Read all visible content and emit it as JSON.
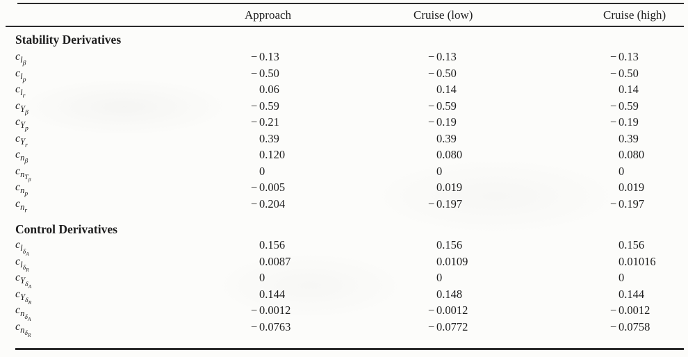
{
  "page": {
    "background_color": "#fcfcfa",
    "text_color": "#1d1d1d",
    "rule_color": "#2b2b2b"
  },
  "table": {
    "column_headers": [
      "Approach",
      "Cruise (low)",
      "Cruise (high)"
    ],
    "sections": [
      {
        "title": "Stability Derivatives",
        "rows": [
          {
            "symbol": [
              "c",
              "l",
              "β"
            ],
            "symbol_text": "c_l_beta",
            "values": [
              "-0.13",
              "-0.13",
              "-0.13"
            ]
          },
          {
            "symbol": [
              "c",
              "l",
              "p"
            ],
            "symbol_text": "c_l_p",
            "values": [
              "-0.50",
              "-0.50",
              "-0.50"
            ]
          },
          {
            "symbol": [
              "c",
              "l",
              "r"
            ],
            "symbol_text": "c_l_r",
            "values": [
              "0.06",
              "0.14",
              "0.14"
            ]
          },
          {
            "symbol": [
              "c",
              "Y",
              "β"
            ],
            "symbol_text": "c_Y_beta",
            "values": [
              "-0.59",
              "-0.59",
              "-0.59"
            ]
          },
          {
            "symbol": [
              "c",
              "Y",
              "p"
            ],
            "symbol_text": "c_Y_p",
            "values": [
              "-0.21",
              "-0.19",
              "-0.19"
            ]
          },
          {
            "symbol": [
              "c",
              "Y",
              "r"
            ],
            "symbol_text": "c_Y_r",
            "values": [
              "0.39",
              "0.39",
              "0.39"
            ]
          },
          {
            "symbol": [
              "c",
              "n",
              "β"
            ],
            "symbol_text": "c_n_beta",
            "values": [
              "0.120",
              "0.080",
              "0.080"
            ]
          },
          {
            "symbol": [
              "c",
              "n",
              "T",
              "β"
            ],
            "symbol_text": "c_n_T_beta",
            "values": [
              "0",
              "0",
              "0"
            ]
          },
          {
            "symbol": [
              "c",
              "n",
              "p"
            ],
            "symbol_text": "c_n_p",
            "values": [
              "-0.005",
              "0.019",
              "0.019"
            ]
          },
          {
            "symbol": [
              "c",
              "n",
              "r"
            ],
            "symbol_text": "c_n_r",
            "values": [
              "-0.204",
              "-0.197",
              "-0.197"
            ]
          }
        ]
      },
      {
        "title": "Control Derivatives",
        "rows": [
          {
            "symbol": [
              "c",
              "l",
              "δ",
              "A"
            ],
            "symbol_text": "c_l_delta_A",
            "values": [
              "0.156",
              "0.156",
              "0.156"
            ]
          },
          {
            "symbol": [
              "c",
              "l",
              "δ",
              "R"
            ],
            "symbol_text": "c_l_delta_R",
            "values": [
              "0.0087",
              "0.0109",
              "0.01016"
            ]
          },
          {
            "symbol": [
              "c",
              "Y",
              "δ",
              "A"
            ],
            "symbol_text": "c_Y_delta_A",
            "values": [
              "0",
              "0",
              "0"
            ]
          },
          {
            "symbol": [
              "c",
              "Y",
              "δ",
              "R"
            ],
            "symbol_text": "c_Y_delta_R",
            "values": [
              "0.144",
              "0.148",
              "0.144"
            ]
          },
          {
            "symbol": [
              "c",
              "n",
              "δ",
              "A"
            ],
            "symbol_text": "c_n_delta_A",
            "values": [
              "-0.0012",
              "-0.0012",
              "-0.0012"
            ]
          },
          {
            "symbol": [
              "c",
              "n",
              "δ",
              "R"
            ],
            "symbol_text": "c_n_delta_R",
            "values": [
              "-0.0763",
              "-0.0772",
              "-0.0758"
            ]
          }
        ]
      }
    ]
  }
}
